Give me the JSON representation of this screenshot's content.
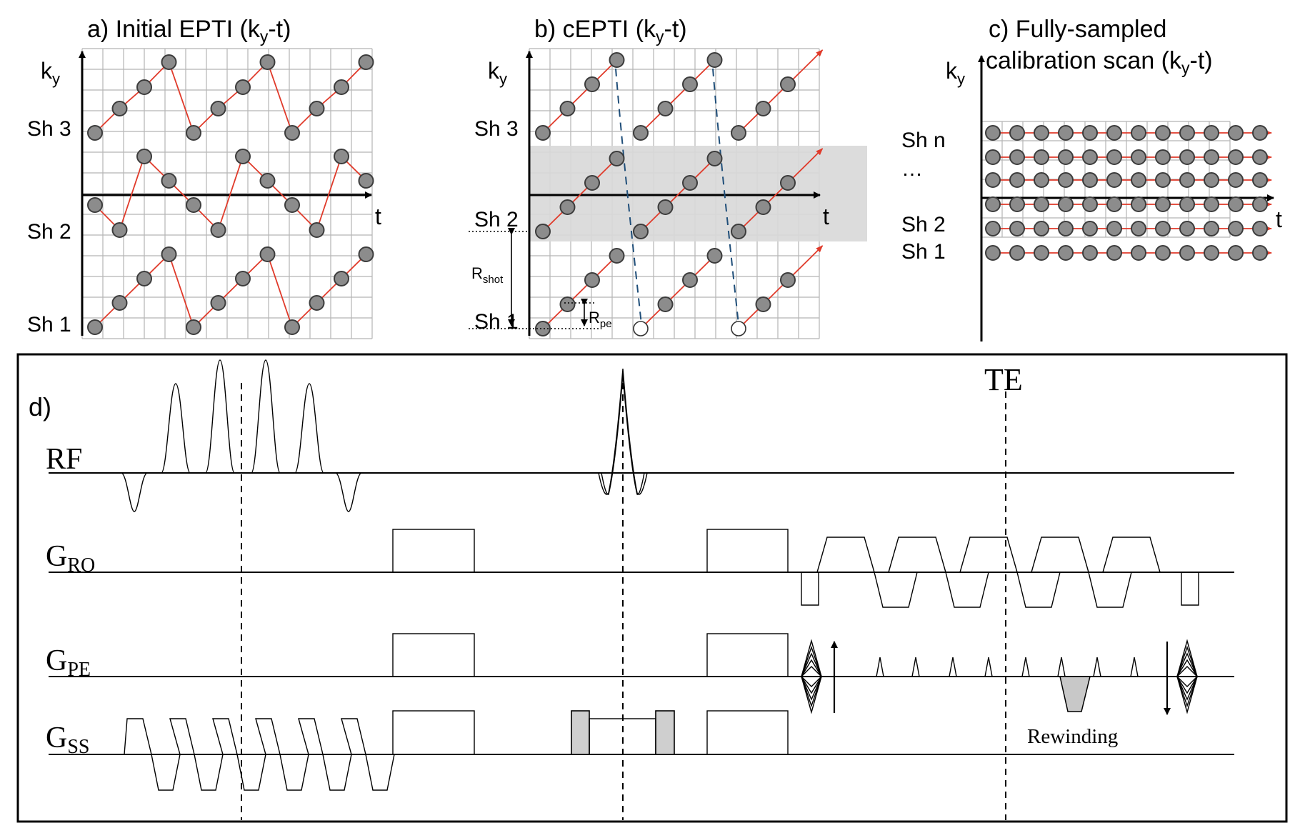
{
  "panel_a": {
    "title_pre": "a) Initial EPTI (k",
    "title_sub": "y",
    "title_post": "-t)",
    "ky_main": "k",
    "ky_sub": "y",
    "t_label": "t",
    "shot_labels": [
      "Sh 3",
      "Sh 2",
      "Sh 1"
    ]
  },
  "panel_b": {
    "title_pre": "b) cEPTI (k",
    "title_sub": "y",
    "title_post": "-t)",
    "ky_main": "k",
    "ky_sub": "y",
    "t_label": "t",
    "shot_labels": [
      "Sh 3",
      "Sh 2",
      "Sh 1"
    ],
    "r_shot_main": "R",
    "r_shot_sub": "shot",
    "r_pe_main": "R",
    "r_pe_sub": "pe"
  },
  "panel_c": {
    "title_line1": "c) Fully-sampled",
    "title_line2_pre": "calibration scan (k",
    "title_line2_sub": "y",
    "title_line2_post": "-t)",
    "ky_main": "k",
    "ky_sub": "y",
    "t_label": "t",
    "shot_labels": [
      "Sh n",
      "…",
      "Sh 2",
      "Sh 1"
    ]
  },
  "panel_d": {
    "label": "d)",
    "te_label": "TE",
    "rf_label": "RF",
    "gro_main": "G",
    "gro_sub": "RO",
    "gpe_main": "G",
    "gpe_sub": "PE",
    "gss_main": "G",
    "gss_sub": "SS",
    "rewinding_label": "Rewinding"
  },
  "colors": {
    "trajectory": "#e03a2a",
    "sample_fill": "#8c8c8c",
    "shaded_region": "#d9d9d9",
    "dashed_blue": "#1f4e79"
  }
}
